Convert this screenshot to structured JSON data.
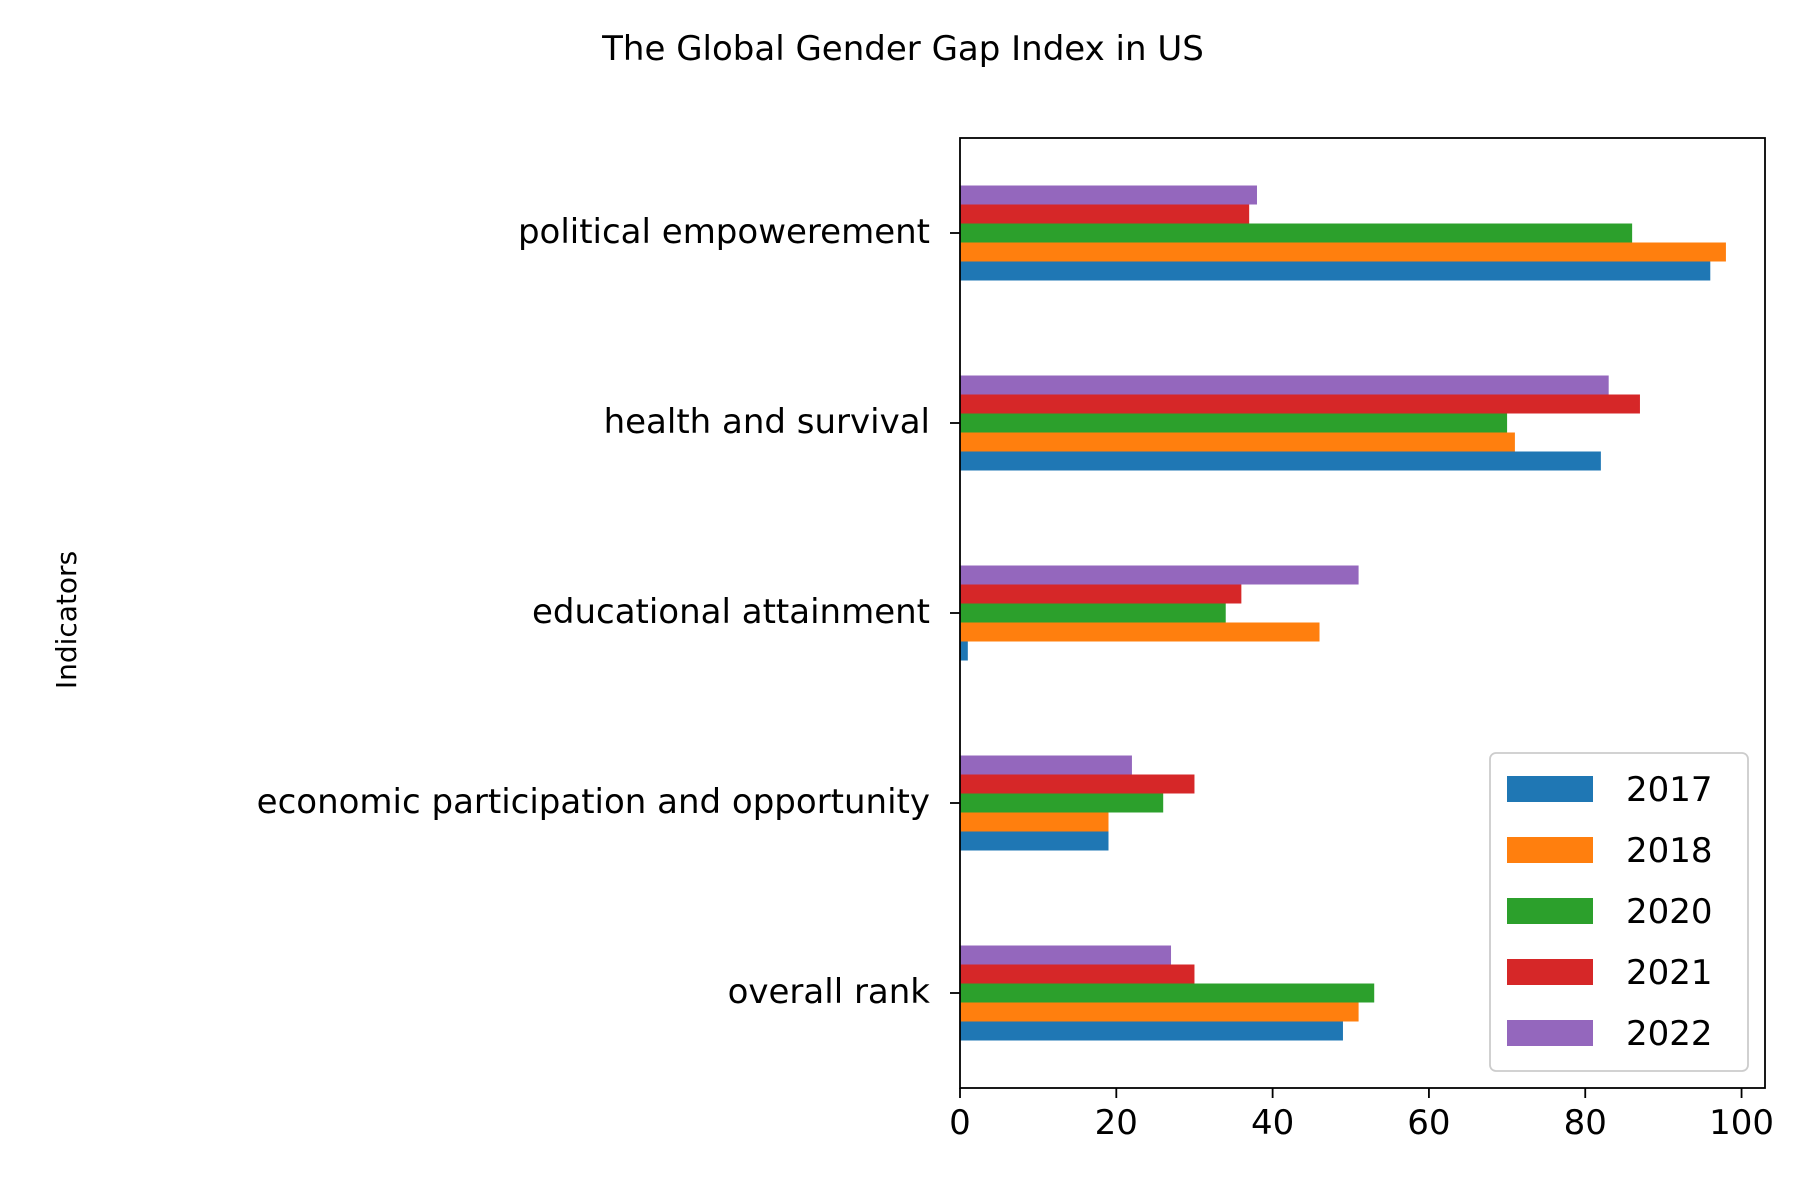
{
  "chart_data": {
    "type": "bar",
    "orientation": "horizontal",
    "title": "The Global Gender Gap Index in US",
    "xlabel": "",
    "ylabel": "Indicators",
    "xlim": [
      0,
      103
    ],
    "xticks": [
      0,
      20,
      40,
      60,
      80,
      100
    ],
    "categories": [
      "overall rank",
      "economic participation and opportunity",
      "educational attainment ",
      "health and survival",
      "political empowerement "
    ],
    "series": [
      {
        "name": "2017",
        "color": "#1f77b4",
        "values": [
          49,
          19,
          1,
          82,
          96
        ]
      },
      {
        "name": "2018",
        "color": "#ff7f0e",
        "values": [
          51,
          19,
          46,
          71,
          98
        ]
      },
      {
        "name": "2020",
        "color": "#2ca02c",
        "values": [
          53,
          26,
          34,
          70,
          86
        ]
      },
      {
        "name": "2021",
        "color": "#d62728",
        "values": [
          30,
          30,
          36,
          87,
          37
        ]
      },
      {
        "name": "2022",
        "color": "#9467bd",
        "values": [
          27,
          22,
          51,
          83,
          38
        ]
      }
    ],
    "legend": {
      "position": "lower right"
    },
    "grid": false
  }
}
